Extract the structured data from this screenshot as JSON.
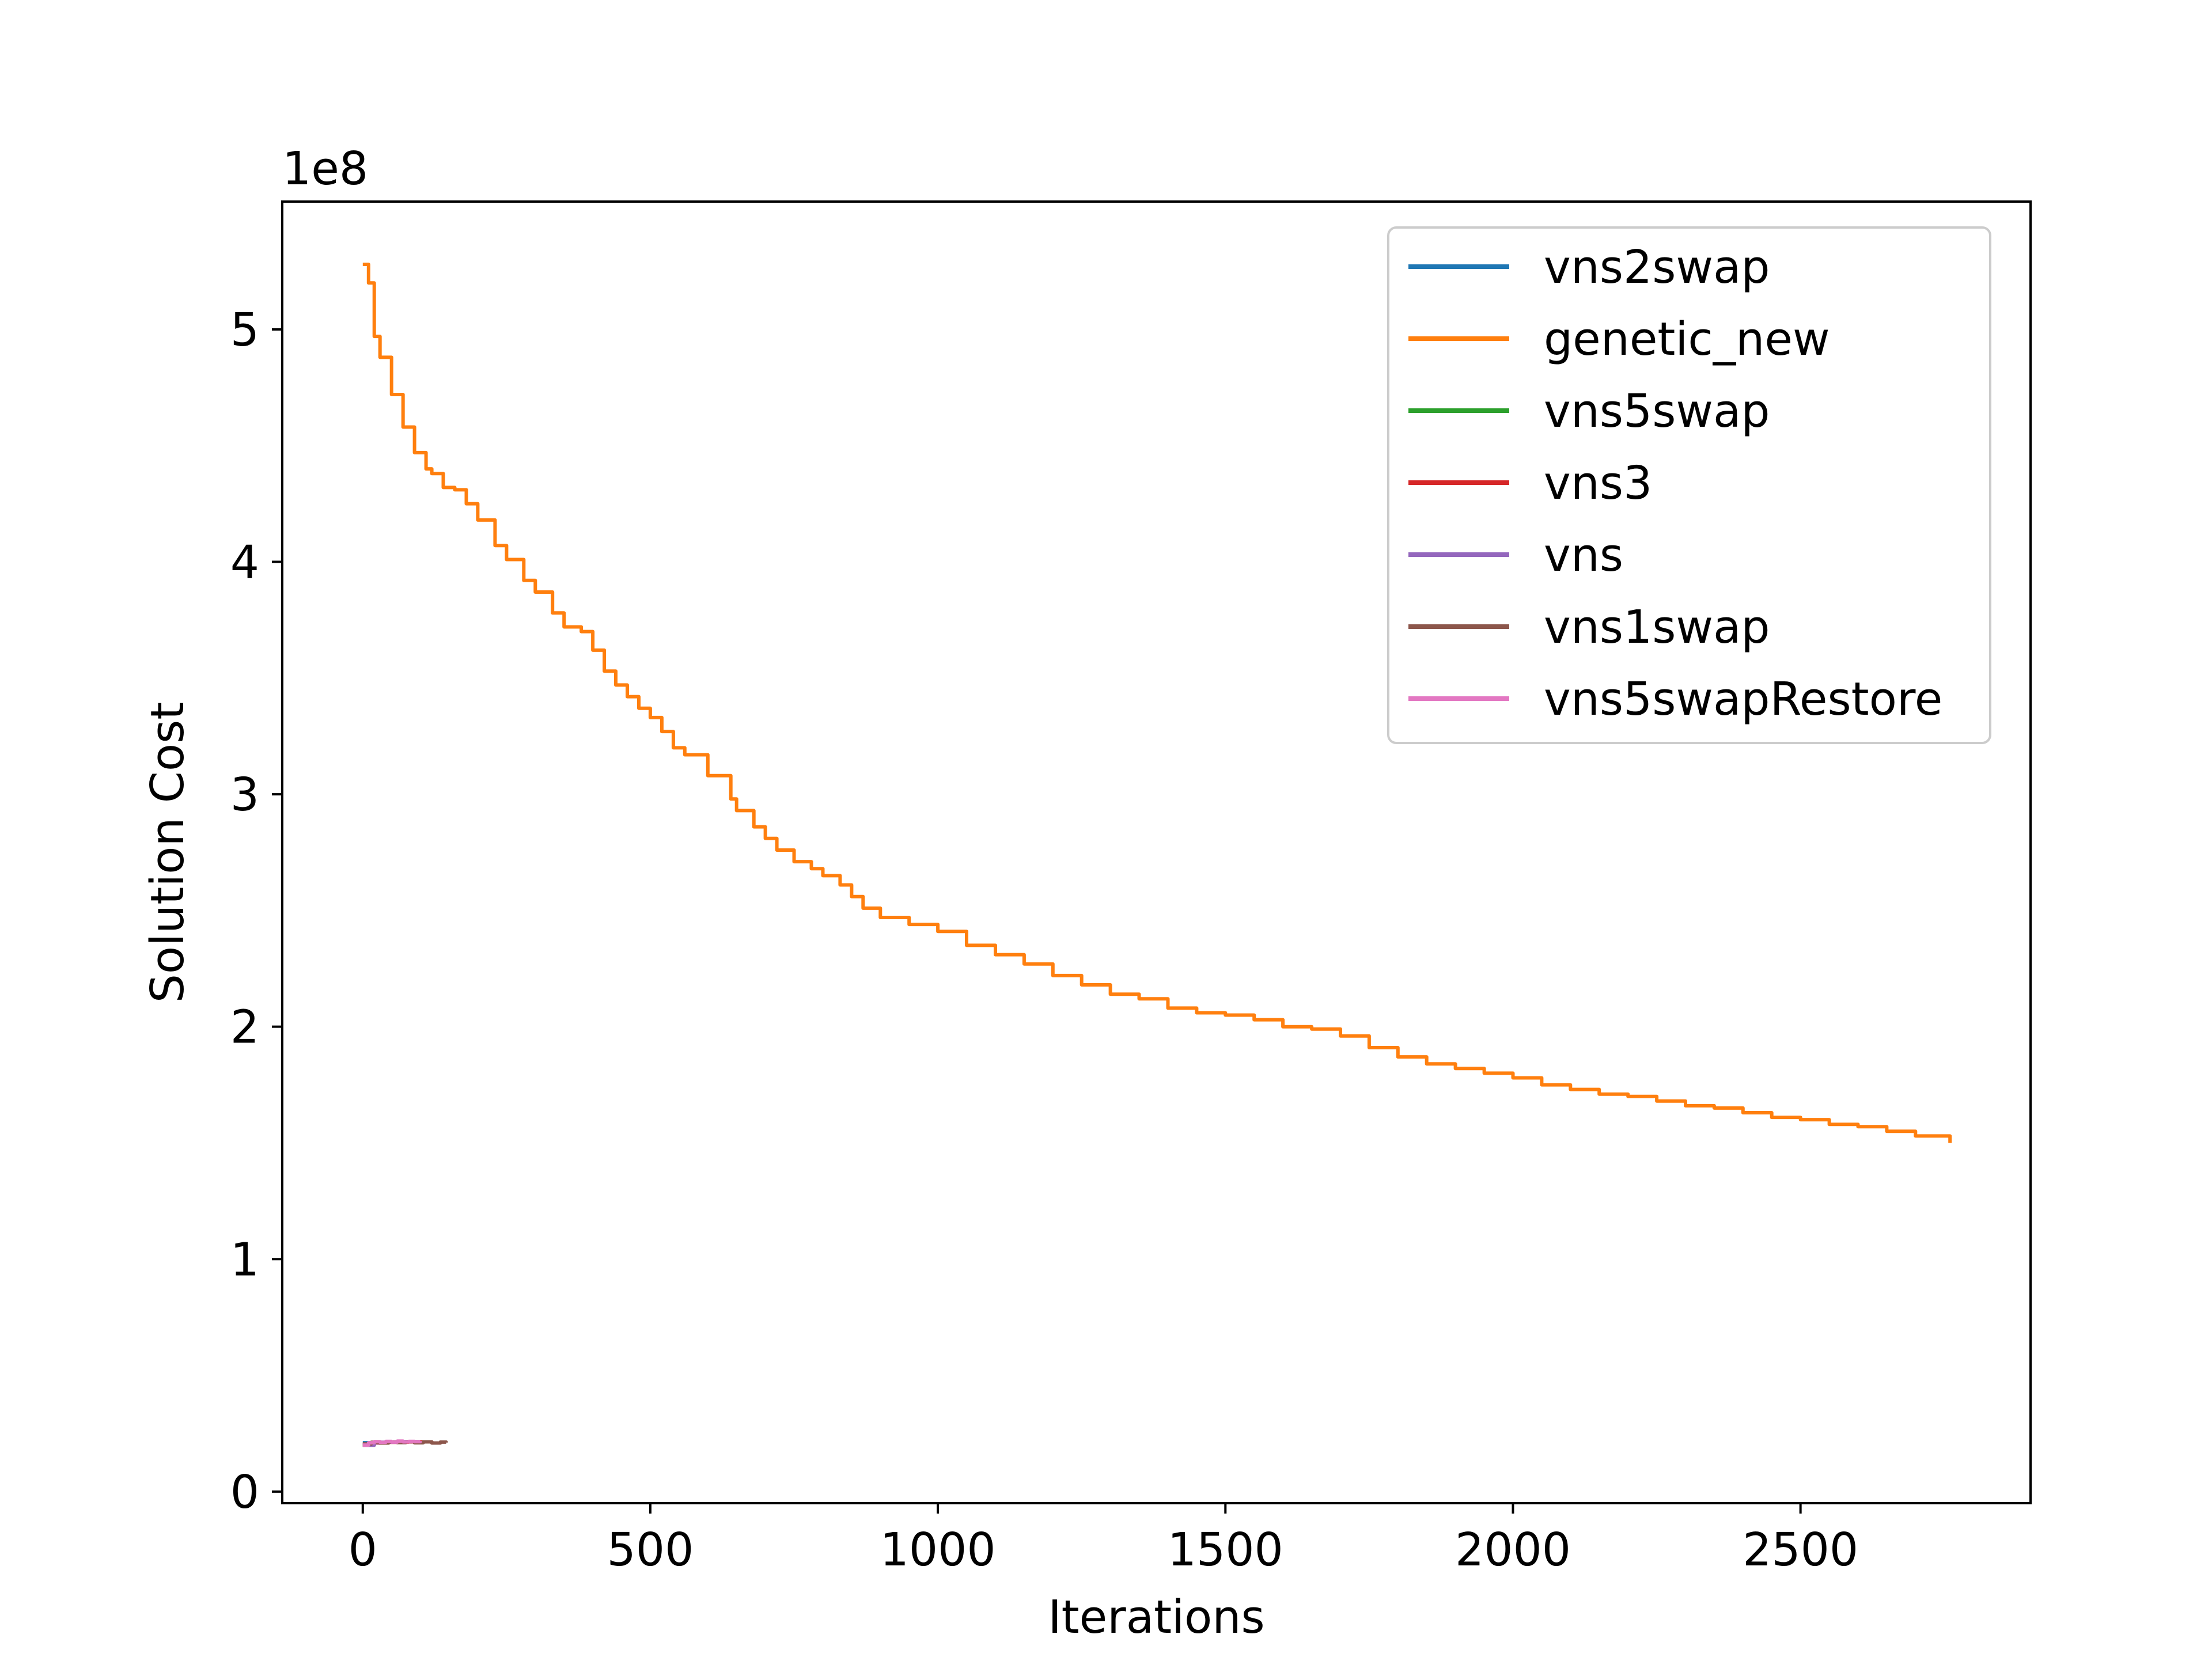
{
  "chart_data": {
    "type": "line",
    "title": "",
    "xlabel": "Iterations",
    "ylabel": "Solution Cost",
    "y_offset_label": "1e8",
    "y_scale_factor": 100000000,
    "xlim": [
      -140,
      2900
    ],
    "ylim": [
      -0.05,
      5.55
    ],
    "x_ticks": [
      0,
      500,
      1000,
      1500,
      2000,
      2500
    ],
    "x_tick_labels": [
      "0",
      "500",
      "1000",
      "1500",
      "2000",
      "2500"
    ],
    "y_ticks": [
      0,
      1,
      2,
      3,
      4,
      5
    ],
    "y_tick_labels": [
      "0",
      "1",
      "2",
      "3",
      "4",
      "5"
    ],
    "grid": false,
    "legend_position": "upper right",
    "series": [
      {
        "name": "vns2swap",
        "color": "#1f77b4",
        "x": [
          0,
          20,
          40,
          60,
          80,
          100
        ],
        "y": [
          0.21,
          0.212,
          0.214,
          0.215,
          0.215,
          0.216
        ]
      },
      {
        "name": "genetic_new",
        "color": "#ff7f0e",
        "x": [
          0,
          10,
          20,
          30,
          50,
          70,
          90,
          110,
          120,
          140,
          160,
          180,
          200,
          230,
          250,
          280,
          300,
          330,
          350,
          380,
          400,
          420,
          440,
          460,
          480,
          500,
          520,
          540,
          560,
          600,
          640,
          650,
          680,
          700,
          720,
          750,
          780,
          800,
          830,
          850,
          870,
          900,
          950,
          1000,
          1050,
          1100,
          1150,
          1200,
          1250,
          1300,
          1350,
          1400,
          1450,
          1500,
          1550,
          1600,
          1650,
          1700,
          1750,
          1800,
          1850,
          1900,
          1950,
          2000,
          2050,
          2100,
          2150,
          2200,
          2250,
          2300,
          2350,
          2400,
          2450,
          2500,
          2550,
          2600,
          2650,
          2700,
          2760
        ],
        "y": [
          5.28,
          5.2,
          4.97,
          4.88,
          4.72,
          4.58,
          4.47,
          4.4,
          4.38,
          4.32,
          4.31,
          4.25,
          4.18,
          4.07,
          4.01,
          3.92,
          3.87,
          3.78,
          3.72,
          3.7,
          3.62,
          3.53,
          3.47,
          3.42,
          3.37,
          3.33,
          3.27,
          3.2,
          3.17,
          3.08,
          2.98,
          2.93,
          2.86,
          2.81,
          2.76,
          2.71,
          2.68,
          2.65,
          2.61,
          2.56,
          2.51,
          2.47,
          2.44,
          2.41,
          2.35,
          2.31,
          2.27,
          2.22,
          2.18,
          2.14,
          2.12,
          2.08,
          2.06,
          2.05,
          2.03,
          2.0,
          1.99,
          1.96,
          1.91,
          1.87,
          1.84,
          1.82,
          1.8,
          1.78,
          1.75,
          1.73,
          1.71,
          1.7,
          1.68,
          1.66,
          1.65,
          1.63,
          1.61,
          1.6,
          1.58,
          1.57,
          1.55,
          1.53,
          1.5
        ]
      },
      {
        "name": "vns5swap",
        "color": "#2ca02c",
        "x": [
          0,
          20,
          40,
          60,
          80,
          100
        ],
        "y": [
          0.2,
          0.21,
          0.213,
          0.214,
          0.215,
          0.215
        ]
      },
      {
        "name": "vns3",
        "color": "#d62728",
        "x": [
          0,
          20,
          40,
          60,
          80,
          100,
          120
        ],
        "y": [
          0.2,
          0.209,
          0.212,
          0.213,
          0.214,
          0.214,
          0.213
        ]
      },
      {
        "name": "vns",
        "color": "#9467bd",
        "x": [
          0,
          20,
          40,
          60,
          80,
          100
        ],
        "y": [
          0.2,
          0.21,
          0.213,
          0.214,
          0.215,
          0.215
        ]
      },
      {
        "name": "vns1swap",
        "color": "#8c564b",
        "x": [
          0,
          15,
          30,
          45,
          60,
          75,
          90,
          105,
          120,
          135,
          145
        ],
        "y": [
          0.205,
          0.212,
          0.209,
          0.214,
          0.211,
          0.215,
          0.21,
          0.214,
          0.209,
          0.213,
          0.211
        ]
      },
      {
        "name": "vns5swapRestore",
        "color": "#e377c2",
        "x": [
          0,
          10,
          20,
          30,
          40,
          50,
          60,
          70,
          80,
          90,
          100
        ],
        "y": [
          0.2,
          0.21,
          0.215,
          0.212,
          0.216,
          0.213,
          0.217,
          0.214,
          0.216,
          0.215,
          0.217
        ]
      }
    ]
  }
}
